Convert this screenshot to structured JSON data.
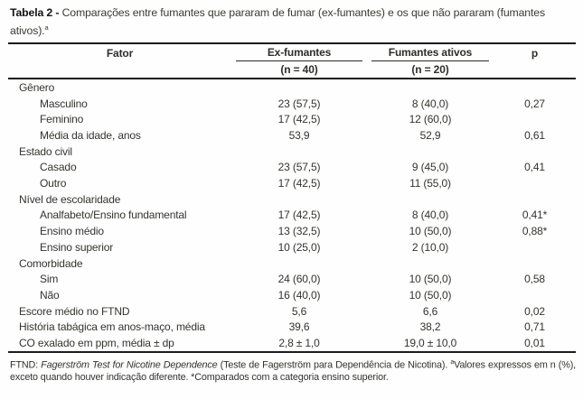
{
  "caption": {
    "label": "Tabela 2 -",
    "text": " Comparações entre fumantes que pararam de fumar (ex-fumantes) e os que não pararam (fumantes ativos).",
    "marker": "a"
  },
  "table": {
    "header": {
      "factor": "Fator",
      "group1_name": "Ex-fumantes",
      "group1_n": "(n = 40)",
      "group2_name": "Fumantes ativos",
      "group2_n": "(n = 20)",
      "p": "p"
    },
    "rows": [
      {
        "label": "Gênero",
        "type": "section",
        "ex": "",
        "ativos": "",
        "p": ""
      },
      {
        "label": "Masculino",
        "type": "item",
        "ex": "23 (57,5)",
        "ativos": "8 (40,0)",
        "p": "0,27"
      },
      {
        "label": "Feminino",
        "type": "item",
        "ex": "17 (42,5)",
        "ativos": "12 (60,0)",
        "p": ""
      },
      {
        "label": "Média da idade, anos",
        "type": "item",
        "ex": "53,9",
        "ativos": "52,9",
        "p": "0,61"
      },
      {
        "label": "Estado civil",
        "type": "section",
        "ex": "",
        "ativos": "",
        "p": ""
      },
      {
        "label": "Casado",
        "type": "item",
        "ex": "23 (57,5)",
        "ativos": "9 (45,0)",
        "p": "0,41"
      },
      {
        "label": "Outro",
        "type": "item",
        "ex": "17 (42,5)",
        "ativos": "11 (55,0)",
        "p": ""
      },
      {
        "label": "Nível de escolaridade",
        "type": "section",
        "ex": "",
        "ativos": "",
        "p": ""
      },
      {
        "label": "Analfabeto/Ensino fundamental",
        "type": "item",
        "ex": "17 (42,5)",
        "ativos": "8 (40,0)",
        "p": "0,41*"
      },
      {
        "label": "Ensino médio",
        "type": "item",
        "ex": "13 (32,5)",
        "ativos": "10 (50,0)",
        "p": "0,88*"
      },
      {
        "label": "Ensino superior",
        "type": "item",
        "ex": "10 (25,0)",
        "ativos": "2 (10,0)",
        "p": ""
      },
      {
        "label": "Comorbidade",
        "type": "section",
        "ex": "",
        "ativos": "",
        "p": ""
      },
      {
        "label": "Sim",
        "type": "item",
        "ex": "24 (60,0)",
        "ativos": "10 (50,0)",
        "p": "0,58"
      },
      {
        "label": "Não",
        "type": "item",
        "ex": "16 (40,0)",
        "ativos": "10 (50,0)",
        "p": ""
      },
      {
        "label": "Escore médio no FTND",
        "type": "plain",
        "ex": "5,6",
        "ativos": "6,6",
        "p": "0,02"
      },
      {
        "label": "História tabágica em anos-maço, média",
        "type": "plain",
        "ex": "39,6",
        "ativos": "38,2",
        "p": "0,71"
      },
      {
        "label": "CO exalado em ppm, média ± dp",
        "type": "plain",
        "ex": "2,8 ± 1,0",
        "ativos": "19,0 ± 10,0",
        "p": "0,01"
      }
    ]
  },
  "footnote": {
    "segments": [
      {
        "text": "FTND: "
      },
      {
        "text": "Fagerström Test for Nicotine Dependence",
        "italic": true
      },
      {
        "text": " (Teste de Fagerström para Dependência de Nicotina). "
      },
      {
        "text": "a",
        "sup": true
      },
      {
        "text": "Valores expressos em n (%), exceto quando houver indicação diferente. *Comparados com a categoria ensino superior."
      }
    ]
  },
  "colors": {
    "text": "#33332f",
    "rule": "#1c1c1c",
    "background": "#fefefe"
  }
}
